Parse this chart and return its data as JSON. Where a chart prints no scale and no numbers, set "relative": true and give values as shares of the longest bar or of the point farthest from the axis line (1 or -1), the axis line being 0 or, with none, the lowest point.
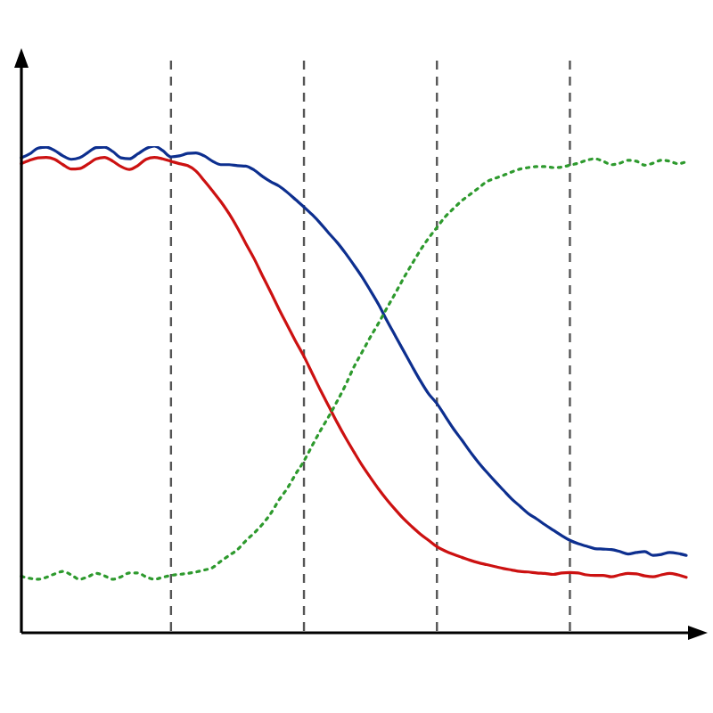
{
  "chart_data": {
    "type": "line",
    "relative": true,
    "grid": "x",
    "legend": false,
    "marker": "none",
    "line_style": "solid",
    "categories": [
      null,
      null,
      null,
      null,
      null,
      null,
      null,
      null,
      null,
      null,
      null,
      null,
      null,
      null,
      null,
      null,
      null,
      null,
      null,
      null,
      null,
      null,
      null,
      null,
      null,
      null,
      null,
      null,
      null,
      null,
      null,
      null,
      null,
      null,
      null,
      null,
      null,
      null,
      null,
      null,
      null,
      null,
      null,
      null,
      null,
      null,
      null,
      null,
      null,
      null,
      null,
      null,
      null,
      null,
      null,
      null,
      null,
      null,
      null,
      null,
      null,
      null,
      null,
      null,
      null,
      null,
      null,
      null,
      null,
      null,
      null,
      null,
      null,
      null,
      null,
      null,
      null,
      null,
      null,
      null,
      null
    ],
    "series": [
      {
        "color": "#0d2f8f",
        "values": [
          0.976,
          0.984,
          0.996,
          0.998,
          0.991,
          0.98,
          0.973,
          0.976,
          0.987,
          0.997,
          0.998,
          0.989,
          0.976,
          0.974,
          0.984,
          0.995,
          1,
          0.991,
          0.978,
          0.98,
          0.985,
          0.986,
          0.98,
          0.969,
          0.962,
          0.962,
          0.96,
          0.959,
          0.951,
          0.938,
          0.927,
          0.918,
          0.905,
          0.89,
          0.875,
          0.859,
          0.841,
          0.821,
          0.802,
          0.78,
          0.756,
          0.731,
          0.703,
          0.674,
          0.641,
          0.61,
          0.579,
          0.548,
          0.518,
          0.491,
          0.471,
          0.445,
          0.419,
          0.396,
          0.372,
          0.35,
          0.33,
          0.311,
          0.293,
          0.275,
          0.26,
          0.245,
          0.234,
          0.222,
          0.211,
          0.2,
          0.19,
          0.183,
          0.178,
          0.173,
          0.172,
          0.171,
          0.167,
          0.162,
          0.165,
          0.167,
          0.159,
          0.161,
          0.165,
          0.163,
          0.159
        ]
      },
      {
        "color": "#cc1111",
        "values": [
          0.964,
          0.971,
          0.976,
          0.977,
          0.973,
          0.962,
          0.953,
          0.954,
          0.963,
          0.974,
          0.977,
          0.969,
          0.958,
          0.952,
          0.96,
          0.973,
          0.977,
          0.974,
          0.969,
          0.964,
          0.96,
          0.949,
          0.929,
          0.908,
          0.886,
          0.861,
          0.832,
          0.8,
          0.769,
          0.734,
          0.7,
          0.665,
          0.632,
          0.599,
          0.568,
          0.533,
          0.498,
          0.465,
          0.432,
          0.401,
          0.372,
          0.344,
          0.319,
          0.295,
          0.273,
          0.253,
          0.234,
          0.218,
          0.203,
          0.19,
          0.177,
          0.168,
          0.161,
          0.155,
          0.149,
          0.144,
          0.14,
          0.136,
          0.132,
          0.129,
          0.126,
          0.125,
          0.123,
          0.122,
          0.12,
          0.123,
          0.124,
          0.123,
          0.119,
          0.118,
          0.118,
          0.115,
          0.119,
          0.122,
          0.121,
          0.117,
          0.115,
          0.119,
          0.122,
          0.119,
          0.114
        ]
      },
      {
        "color": "#2e9a2e",
        "line_style": "dotted",
        "values": [
          0.116,
          0.112,
          0.11,
          0.114,
          0.121,
          0.126,
          0.119,
          0.11,
          0.115,
          0.122,
          0.117,
          0.11,
          0.115,
          0.123,
          0.123,
          0.115,
          0.11,
          0.114,
          0.118,
          0.12,
          0.122,
          0.125,
          0.129,
          0.134,
          0.147,
          0.159,
          0.171,
          0.189,
          0.205,
          0.223,
          0.245,
          0.273,
          0.297,
          0.326,
          0.353,
          0.385,
          0.416,
          0.445,
          0.476,
          0.509,
          0.546,
          0.577,
          0.608,
          0.637,
          0.668,
          0.698,
          0.729,
          0.758,
          0.786,
          0.811,
          0.833,
          0.855,
          0.872,
          0.888,
          0.901,
          0.914,
          0.927,
          0.934,
          0.94,
          0.947,
          0.953,
          0.956,
          0.958,
          0.958,
          0.956,
          0.957,
          0.961,
          0.965,
          0.971,
          0.974,
          0.969,
          0.962,
          0.965,
          0.971,
          0.969,
          0.961,
          0.965,
          0.971,
          0.969,
          0.964,
          0.968
        ]
      }
    ]
  }
}
